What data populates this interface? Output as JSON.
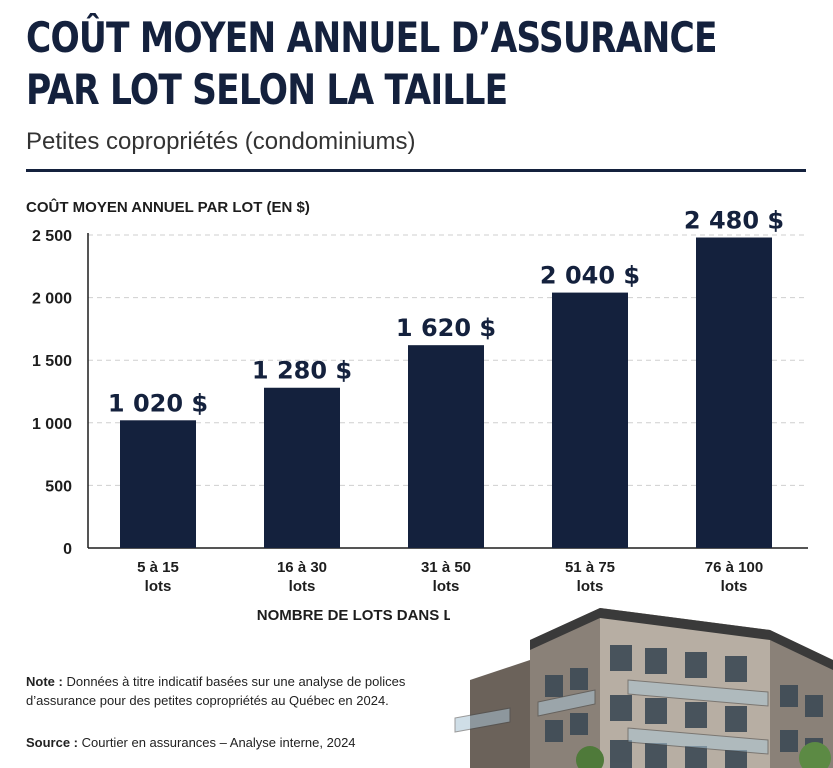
{
  "title_lines": [
    "COÛT MOYEN ANNUEL D’ASSURANCE",
    "PAR LOT SELON LA TAILLE"
  ],
  "subtitle": "Petites copropriétés (condominiums)",
  "colors": {
    "bar": "#14213d",
    "title": "#14213d",
    "grid": "#cfcfcf"
  },
  "chart_data": {
    "type": "bar",
    "title": "COÛT MOYEN ANNUEL D’ASSURANCE PAR LOT SELON LA TAILLE",
    "subtitle": "Petites copropriétés (condominiums)",
    "ylabel": "COÛT MOYEN ANNUEL PAR LOT (EN $)",
    "xlabel": "NOMBRE DE LOTS DANS LA COPROPRIÉTÉ",
    "ylim": [
      0,
      2500
    ],
    "yticks": [
      0,
      500,
      1000,
      1500,
      2000,
      2500
    ],
    "ytick_labels": [
      "0",
      "500",
      "1 000",
      "1 500",
      "2 000",
      "2 500"
    ],
    "categories": [
      [
        "5 à 15",
        "lots"
      ],
      [
        "16 à 30",
        "lots"
      ],
      [
        "31 à 50",
        "lots"
      ],
      [
        "51 à 75",
        "lots"
      ],
      [
        "76 à 100",
        "lots"
      ]
    ],
    "values": [
      1020,
      1280,
      1620,
      2040,
      2480
    ],
    "value_labels": [
      "1 020 $",
      "1 280 $",
      "1 620 $",
      "2 040 $",
      "2 480 $"
    ],
    "grid": true,
    "legend": "none"
  },
  "note_label": "Note :",
  "note_text": "Données à titre indicatif basées sur une analyse de polices d’assurance pour des petites copropriétés au Québec en 2024.",
  "source_label": "Source :",
  "source_text": "Courtier en assurances – Analyse interne, 2024",
  "image": "condo-building-illustration"
}
